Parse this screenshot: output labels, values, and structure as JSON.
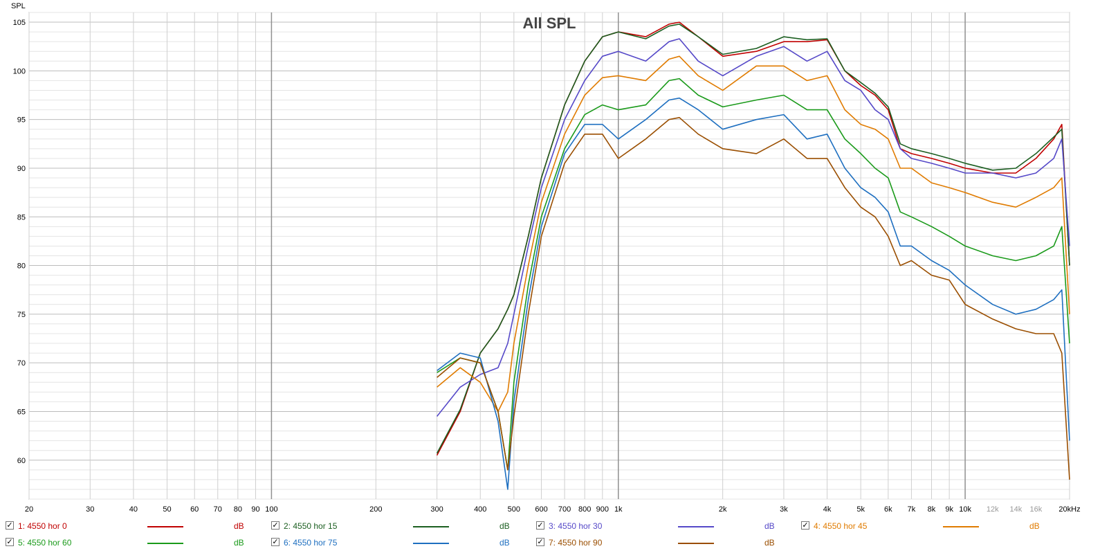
{
  "chart_data": {
    "type": "line",
    "title": "All SPL",
    "ylabel": "SPL",
    "xunit": "kHz",
    "x_scale": "log",
    "xlim": [
      20,
      20000
    ],
    "ylim": [
      56,
      106
    ],
    "grid": true,
    "y_ticks": [
      60,
      65,
      70,
      75,
      80,
      85,
      90,
      95,
      100,
      105
    ],
    "x_ticks": [
      {
        "v": 20,
        "label": "20"
      },
      {
        "v": 30,
        "label": "30"
      },
      {
        "v": 40,
        "label": "40"
      },
      {
        "v": 50,
        "label": "50"
      },
      {
        "v": 60,
        "label": "60"
      },
      {
        "v": 70,
        "label": "70"
      },
      {
        "v": 80,
        "label": "80"
      },
      {
        "v": 90,
        "label": "90"
      },
      {
        "v": 100,
        "label": "100"
      },
      {
        "v": 200,
        "label": "200"
      },
      {
        "v": 300,
        "label": "300"
      },
      {
        "v": 400,
        "label": "400"
      },
      {
        "v": 500,
        "label": "500"
      },
      {
        "v": 600,
        "label": "600"
      },
      {
        "v": 700,
        "label": "700"
      },
      {
        "v": 800,
        "label": "800"
      },
      {
        "v": 900,
        "label": "900"
      },
      {
        "v": 1000,
        "label": "1k"
      },
      {
        "v": 2000,
        "label": "2k"
      },
      {
        "v": 3000,
        "label": "3k"
      },
      {
        "v": 4000,
        "label": "4k"
      },
      {
        "v": 5000,
        "label": "5k"
      },
      {
        "v": 6000,
        "label": "6k"
      },
      {
        "v": 7000,
        "label": "7k"
      },
      {
        "v": 8000,
        "label": "8k"
      },
      {
        "v": 9000,
        "label": "9k"
      },
      {
        "v": 10000,
        "label": "10k"
      },
      {
        "v": 12000,
        "label": "12k"
      },
      {
        "v": 14000,
        "label": "14k"
      },
      {
        "v": 16000,
        "label": "16k"
      },
      {
        "v": 20000,
        "label": "20kHz"
      }
    ],
    "series": [
      {
        "name": "1: 4550 hor 0",
        "unit": "dB",
        "color": "#c00000",
        "x": [
          300,
          350,
          400,
          450,
          480,
          500,
          550,
          600,
          700,
          800,
          900,
          1000,
          1200,
          1400,
          1500,
          1700,
          2000,
          2500,
          3000,
          3500,
          4000,
          4500,
          5000,
          5500,
          6000,
          6500,
          7000,
          8000,
          9000,
          10000,
          12000,
          14000,
          16000,
          18000,
          19000,
          20000
        ],
        "y": [
          60.5,
          65,
          71,
          73.5,
          75.5,
          77,
          83,
          89,
          96.5,
          101,
          103.5,
          104,
          103.5,
          104.8,
          105,
          103.5,
          101.5,
          102,
          103,
          103,
          103.2,
          100,
          98.5,
          97.5,
          96,
          92,
          91.5,
          91,
          90.5,
          90,
          89.5,
          89.5,
          91,
          93,
          94.5,
          80
        ]
      },
      {
        "name": "2: 4550 hor 15",
        "unit": "dB",
        "color": "#1b5e20",
        "x": [
          300,
          350,
          400,
          450,
          480,
          500,
          550,
          600,
          700,
          800,
          900,
          1000,
          1200,
          1400,
          1500,
          1700,
          2000,
          2500,
          3000,
          3500,
          4000,
          4500,
          5000,
          5500,
          6000,
          6500,
          7000,
          8000,
          9000,
          10000,
          12000,
          14000,
          16000,
          18000,
          19000,
          20000
        ],
        "y": [
          60.7,
          65.2,
          71,
          73.5,
          75.5,
          77,
          83,
          89,
          96.5,
          101,
          103.5,
          104,
          103.3,
          104.6,
          104.8,
          103.5,
          101.7,
          102.3,
          103.5,
          103.2,
          103.3,
          100,
          98.8,
          97.7,
          96.3,
          92.5,
          92,
          91.5,
          91,
          90.5,
          89.8,
          90,
          91.5,
          93.2,
          94,
          80
        ]
      },
      {
        "name": "3: 4550 hor 30",
        "unit": "dB",
        "color": "#5548c8",
        "x": [
          300,
          350,
          400,
          450,
          480,
          500,
          550,
          600,
          700,
          800,
          900,
          1000,
          1200,
          1400,
          1500,
          1700,
          2000,
          2500,
          3000,
          3500,
          4000,
          4500,
          5000,
          5500,
          6000,
          6500,
          7000,
          8000,
          9000,
          10000,
          12000,
          14000,
          16000,
          18000,
          19000,
          20000
        ],
        "y": [
          64.5,
          67.5,
          68.8,
          69.5,
          72,
          75,
          82,
          88,
          95,
          99,
          101.5,
          102,
          101,
          103,
          103.3,
          101,
          99.5,
          101.5,
          102.5,
          101,
          102,
          99,
          98,
          96,
          95,
          92,
          91,
          90.5,
          90,
          89.5,
          89.5,
          89,
          89.5,
          91,
          93,
          82
        ]
      },
      {
        "name": "4: 4550 hor 45",
        "unit": "dB",
        "color": "#e07b00",
        "x": [
          300,
          350,
          400,
          450,
          480,
          500,
          550,
          600,
          700,
          800,
          900,
          1000,
          1200,
          1400,
          1500,
          1700,
          2000,
          2500,
          3000,
          3500,
          4000,
          4500,
          5000,
          5500,
          6000,
          6500,
          7000,
          8000,
          9000,
          10000,
          12000,
          14000,
          16000,
          18000,
          19000,
          20000
        ],
        "y": [
          67.5,
          69.5,
          68,
          65,
          67,
          72,
          80,
          86.5,
          93.5,
          97.5,
          99.3,
          99.5,
          99,
          101.2,
          101.5,
          99.5,
          98,
          100.5,
          100.5,
          99,
          99.5,
          96,
          94.5,
          94,
          93,
          90,
          90,
          88.5,
          88,
          87.5,
          86.5,
          86,
          87,
          88,
          89,
          75
        ]
      },
      {
        "name": "5: 4550 hor 60",
        "unit": "dB",
        "color": "#1a9a1a",
        "x": [
          300,
          350,
          400,
          450,
          480,
          500,
          550,
          600,
          700,
          800,
          900,
          1000,
          1200,
          1400,
          1500,
          1700,
          2000,
          2500,
          3000,
          3500,
          4000,
          4500,
          5000,
          5500,
          6000,
          6500,
          7000,
          8000,
          9000,
          10000,
          12000,
          14000,
          16000,
          18000,
          19000,
          20000
        ],
        "y": [
          69,
          70.5,
          70,
          65,
          59,
          68,
          78,
          85,
          92,
          95.5,
          96.5,
          96,
          96.5,
          99,
          99.2,
          97.5,
          96.3,
          97,
          97.5,
          96,
          96,
          93,
          91.5,
          90,
          89,
          85.5,
          85,
          84,
          83,
          82,
          81,
          80.5,
          81,
          82,
          84,
          72
        ]
      },
      {
        "name": "6: 4550 hor 75",
        "unit": "dB",
        "color": "#1e6fc0",
        "x": [
          300,
          350,
          400,
          450,
          480,
          500,
          550,
          600,
          700,
          800,
          900,
          1000,
          1200,
          1400,
          1500,
          1700,
          2000,
          2500,
          3000,
          3500,
          4000,
          4500,
          5000,
          5500,
          6000,
          6500,
          7000,
          8000,
          9000,
          10000,
          12000,
          14000,
          16000,
          18000,
          19000,
          20000
        ],
        "y": [
          69.2,
          71,
          70.5,
          64,
          57,
          66,
          76.5,
          84,
          91.5,
          94.5,
          94.5,
          93,
          95,
          97,
          97.2,
          96,
          94,
          95,
          95.5,
          93,
          93.5,
          90,
          88,
          87,
          85.5,
          82,
          82,
          80.5,
          79.5,
          78,
          76,
          75,
          75.5,
          76.5,
          77.5,
          62
        ]
      },
      {
        "name": "7: 4550 hor 90",
        "unit": "dB",
        "color": "#9a4e00",
        "x": [
          300,
          350,
          400,
          450,
          480,
          500,
          550,
          600,
          700,
          800,
          900,
          1000,
          1200,
          1400,
          1500,
          1700,
          2000,
          2500,
          3000,
          3500,
          4000,
          4500,
          5000,
          5500,
          6000,
          6500,
          7000,
          8000,
          9000,
          10000,
          12000,
          14000,
          16000,
          18000,
          19000,
          20000
        ],
        "y": [
          68.5,
          70.5,
          70,
          65,
          59,
          64.5,
          75,
          83,
          90.5,
          93.5,
          93.5,
          91,
          93,
          95,
          95.2,
          93.5,
          92,
          91.5,
          93,
          91,
          91,
          88,
          86,
          85,
          83,
          80,
          80.5,
          79,
          78.5,
          76,
          74.5,
          73.5,
          73,
          73,
          71,
          58
        ]
      }
    ]
  },
  "legend": {
    "items": [
      {
        "label": "1: 4550 hor 0",
        "unit": "dB"
      },
      {
        "label": "2: 4550 hor 15",
        "unit": "dB"
      },
      {
        "label": "3: 4550 hor 30",
        "unit": "dB"
      },
      {
        "label": "4: 4550 hor 45",
        "unit": "dB"
      },
      {
        "label": "5: 4550 hor 60",
        "unit": "dB"
      },
      {
        "label": "6: 4550 hor 75",
        "unit": "dB"
      },
      {
        "label": "7: 4550 hor 90",
        "unit": "dB"
      }
    ],
    "checked": "✓"
  }
}
